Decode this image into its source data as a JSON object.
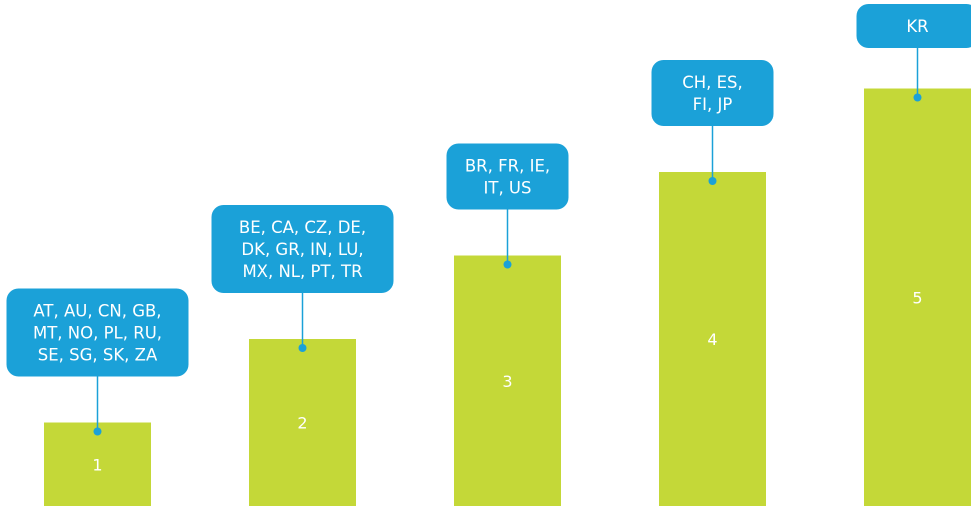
{
  "chart_data": {
    "type": "bar",
    "categories": [
      "1",
      "2",
      "3",
      "4",
      "5"
    ],
    "values": [
      1,
      2,
      3,
      4,
      5
    ],
    "ylim": [
      0,
      6
    ],
    "grid": false,
    "legend": "none",
    "bar_labels": [
      "1",
      "2",
      "3",
      "4",
      "5"
    ],
    "annotations": [
      {
        "category": "1",
        "lines": [
          "AT, AU, CN, GB,",
          "MT, NO, PL, RU,",
          "SE, SG, SK, ZA"
        ]
      },
      {
        "category": "2",
        "lines": [
          "BE, CA, CZ, DE,",
          "DK, GR, IN, LU,",
          "MX, NL, PT, TR"
        ]
      },
      {
        "category": "3",
        "lines": [
          "BR, FR, IE,",
          "IT, US"
        ]
      },
      {
        "category": "4",
        "lines": [
          "CH, ES,",
          "FI, JP"
        ]
      },
      {
        "category": "5",
        "lines": [
          "KR"
        ]
      }
    ],
    "colors": {
      "bar": "#c4d838",
      "callout": "#1ba1d8",
      "callout_text": "#ffffff",
      "bar_label": "#ffffff"
    }
  }
}
